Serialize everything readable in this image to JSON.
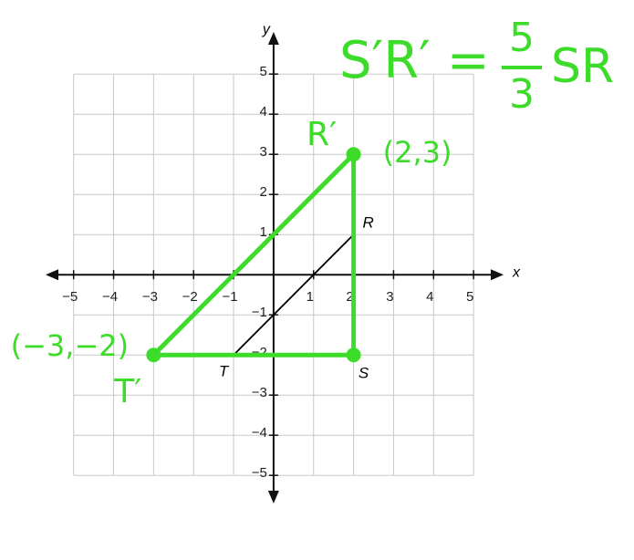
{
  "chart_data": {
    "type": "polygon",
    "x_label": "x",
    "y_label": "y",
    "xlim": [
      -5.7,
      5.75
    ],
    "ylim": [
      -5.7,
      6.05
    ],
    "xticks": [
      {
        "value": -5,
        "label": "−5"
      },
      {
        "value": -4,
        "label": "−4"
      },
      {
        "value": -3,
        "label": "−3"
      },
      {
        "value": -2,
        "label": "−2"
      },
      {
        "value": -1,
        "label": "−1"
      },
      1,
      2,
      3,
      4,
      5
    ],
    "yticks": [
      {
        "value": -5,
        "label": "−5"
      },
      {
        "value": -4,
        "label": "−4"
      },
      {
        "value": -3,
        "label": "−3"
      },
      {
        "value": -2,
        "label": "−2"
      },
      {
        "value": -1,
        "label": "−1"
      },
      1,
      2,
      3,
      4,
      5
    ],
    "grid": true,
    "shapes": [
      {
        "color": "#000000",
        "vertices": [
          {
            "x": 2,
            "y": 1,
            "label": "R"
          },
          {
            "x": 2,
            "y": -2,
            "label": "S"
          },
          {
            "x": -1,
            "y": -2,
            "label": "T"
          }
        ]
      },
      {
        "color": "#3ddc2a",
        "vertices": [
          {
            "x": 2,
            "y": 3,
            "label": "R′",
            "coord_label": "(2,3)"
          },
          {
            "x": 2,
            "y": -2
          },
          {
            "x": -3,
            "y": -2,
            "label": "T′",
            "coord_label": "(−3,−2)"
          }
        ]
      }
    ],
    "annotation": {
      "lhs": "S′R′ =",
      "numerator": "5",
      "denominator": "3",
      "rhs": "SR"
    }
  }
}
